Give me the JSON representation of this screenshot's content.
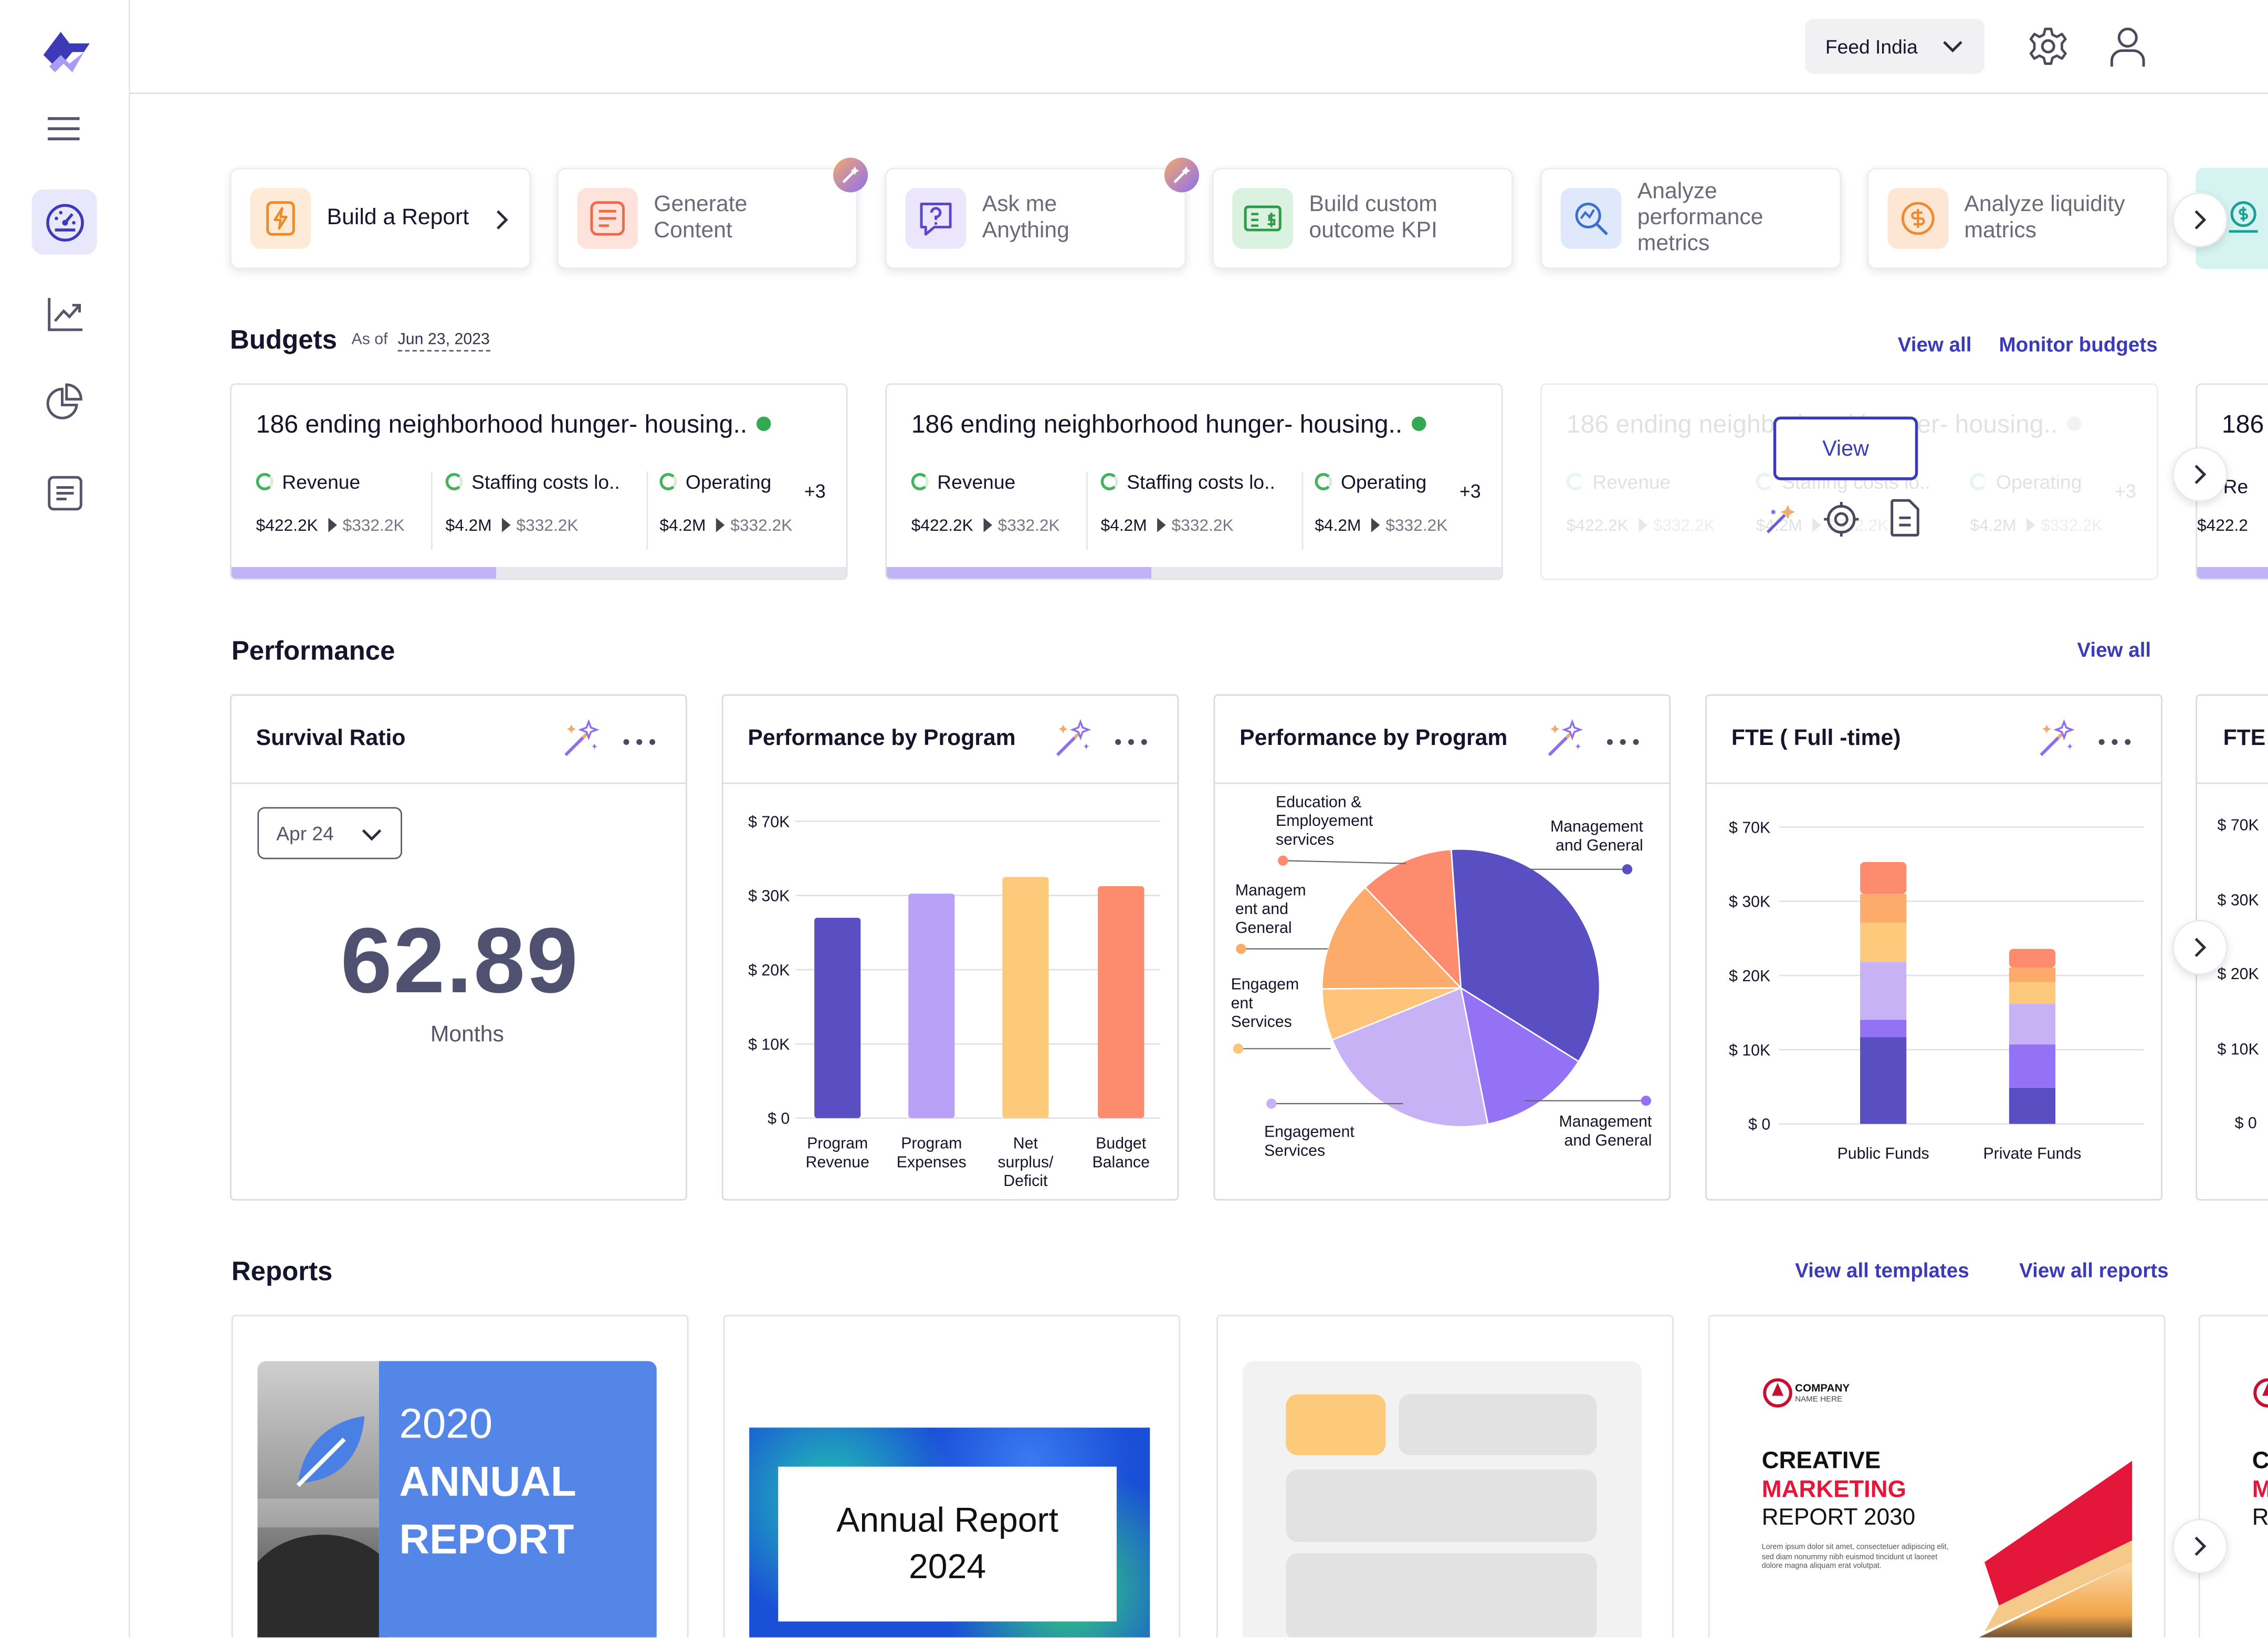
{
  "header": {
    "org_selector": "Feed India",
    "settings": "gear-icon",
    "profile": "user-icon"
  },
  "sidebar": {
    "items": [
      {
        "name": "logo",
        "icon": "logo-icon"
      },
      {
        "name": "menu",
        "icon": "menu-icon"
      },
      {
        "name": "dashboard",
        "icon": "dashboard-icon",
        "active": true
      },
      {
        "name": "trends",
        "icon": "trend-icon"
      },
      {
        "name": "charts",
        "icon": "pie-icon"
      },
      {
        "name": "documents",
        "icon": "document-icon"
      }
    ]
  },
  "quick_actions": [
    {
      "label": "Build a Report",
      "icon": "bolt-doc-icon",
      "color": "#f7a24b"
    },
    {
      "label": "Generate Content",
      "icon": "lines-icon",
      "color": "#f07f5e"
    },
    {
      "label": "Ask me Anything",
      "icon": "question-chat-icon",
      "color": "#8a6df0"
    },
    {
      "label": "Build custom outcome KPI",
      "icon": "money-icon",
      "color": "#3fa85b"
    },
    {
      "label": "Analyze performance metrics",
      "icon": "analytics-icon",
      "color": "#4a7bd9"
    },
    {
      "label": "Analyze liquidity matrics",
      "icon": "dollar-icon",
      "color": "#f3913b"
    }
  ],
  "budgets": {
    "title": "Budgets",
    "as_of_label": "As of",
    "as_of_date": "Jun 23, 2023",
    "view_all": "View all",
    "monitor": "Monitor budgets",
    "card_title": "186 ending neighborhood hunger- housing..",
    "partial_title": "186",
    "metrics": [
      {
        "label": "Revenue",
        "current": "$422.2K",
        "previous": "$332.2K"
      },
      {
        "label": "Staffing costs lo..",
        "current": "$4.2M",
        "previous": "$332.2K"
      },
      {
        "label": "Operating",
        "current": "$4.2M",
        "previous": "$332.2K"
      }
    ],
    "more_count": "+3",
    "progress": 0.43,
    "hover_view": "View"
  },
  "performance": {
    "title": "Performance",
    "view_all": "View all",
    "survival": {
      "title": "Survival Ratio",
      "period": "Apr 24",
      "value": "62.89",
      "unit": "Months"
    },
    "bar_title": "Performance by Program",
    "pie_title": "Performance by Program",
    "fte_title": "FTE ( Full -time)",
    "partial_title": "FTE"
  },
  "chart_data": [
    {
      "type": "bar",
      "title": "Performance by Program",
      "categories": [
        "Program Revenue",
        "Program Expenses",
        "Net surplus/ Deficit",
        "Budget Balance"
      ],
      "values": [
        27000,
        31000,
        40000,
        35000
      ],
      "y_ticks": [
        "$ 0",
        "$ 10K",
        "$ 20K",
        "$ 30K",
        "$ 70K"
      ],
      "colors": [
        "#5a4fc2",
        "#b8a1f7",
        "#fdc97a",
        "#fd8b6e"
      ]
    },
    {
      "type": "pie",
      "title": "Performance by Program",
      "slices": [
        {
          "name": "Management and General",
          "value": 35,
          "color": "#5a4fc2"
        },
        {
          "name": "Management and General",
          "value": 13,
          "color": "#9472f5"
        },
        {
          "name": "Engagement Services",
          "value": 22,
          "color": "#c7b2f5"
        },
        {
          "name": "Engagement Services",
          "value": 6,
          "color": "#fdc47a"
        },
        {
          "name": "Management and General",
          "value": 13,
          "color": "#fdab6b"
        },
        {
          "name": "Education & Employement services",
          "value": 11,
          "color": "#fd8b6e"
        }
      ]
    },
    {
      "type": "bar",
      "title": "FTE ( Full -time)",
      "categories": [
        "Public Funds",
        "Private Funds"
      ],
      "y_ticks": [
        "$ 0",
        "$ 10K",
        "$ 20K",
        "$ 30K",
        "$ 70K"
      ],
      "series": [
        {
          "color": "#5a4fc2",
          "values": [
            60,
            25
          ]
        },
        {
          "color": "#9472f5",
          "values": [
            12,
            30
          ]
        },
        {
          "color": "#c7b2f5",
          "values": [
            40,
            28
          ]
        },
        {
          "color": "#fdc97a",
          "values": [
            27,
            15
          ]
        },
        {
          "color": "#fdab6b",
          "values": [
            20,
            10
          ]
        },
        {
          "color": "#fd8b6e",
          "values": [
            22,
            13
          ]
        }
      ]
    }
  ],
  "reports": {
    "title": "Reports",
    "view_templates": "View all templates",
    "view_reports": "View all reports",
    "cards": [
      {
        "year": "2020",
        "line1": "ANNUAL",
        "line2": "REPORT"
      },
      {
        "title1": "Annual Report",
        "title2": "2024"
      },
      {
        "placeholder": true
      },
      {
        "company": "COMPANY",
        "company_sub": "NAME HERE",
        "line1": "CREATIVE",
        "line2": "MARKETING",
        "line3": "REPORT 2030",
        "body": "Lorem ipsum dolor sit amet, consectetuer adipiscing elit, sed diam nonummy nibh euismod tincidunt ut laoreet dolore magna aliquam erat volutpat."
      }
    ]
  }
}
